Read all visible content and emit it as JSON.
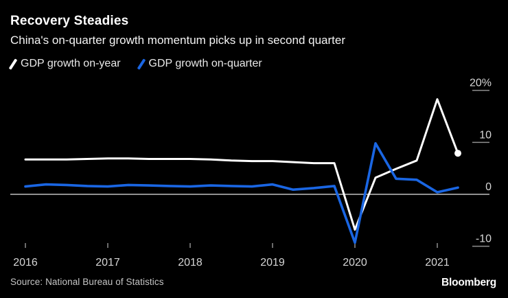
{
  "header": {
    "title": "Recovery Steadies",
    "subtitle": "China's on-quarter growth momentum picks up in second quarter"
  },
  "footer": {
    "source": "Source: National Bureau of Statistics",
    "brand": "Bloomberg"
  },
  "colors": {
    "background": "#000000",
    "on_year_line": "#ffffff",
    "on_quarter_line": "#1a66e3",
    "axis_text": "#d6d6d6",
    "grid": "#8f8f8f",
    "zero_line": "#a6a6a6"
  },
  "chart_data": {
    "type": "line",
    "title": "Recovery Steadies",
    "subtitle": "China's on-quarter growth momentum picks up in second quarter",
    "x_unit": "quarter",
    "x_start": "2016 Q1",
    "x_end": "2021 Q2",
    "x": [
      "2016 Q1",
      "2016 Q2",
      "2016 Q3",
      "2016 Q4",
      "2017 Q1",
      "2017 Q2",
      "2017 Q3",
      "2017 Q4",
      "2018 Q1",
      "2018 Q2",
      "2018 Q3",
      "2018 Q4",
      "2019 Q1",
      "2019 Q2",
      "2019 Q3",
      "2019 Q4",
      "2020 Q1",
      "2020 Q2",
      "2020 Q3",
      "2020 Q4",
      "2021 Q1",
      "2021 Q2"
    ],
    "x_tick_labels": [
      "2016",
      "2017",
      "2018",
      "2019",
      "2020",
      "2021"
    ],
    "y_ticks": [
      20,
      10,
      0,
      -10
    ],
    "y_tick_labels": [
      "20%",
      "10",
      "0",
      "-10"
    ],
    "ylim": [
      -12,
      22
    ],
    "zero_line": true,
    "grid": "right-tick-dashes",
    "legend_position": "top-left",
    "series": [
      {
        "name": "GDP growth on-year",
        "color": "#ffffff",
        "end_marker": true,
        "values": [
          6.7,
          6.7,
          6.7,
          6.8,
          6.9,
          6.9,
          6.8,
          6.8,
          6.8,
          6.7,
          6.5,
          6.4,
          6.4,
          6.2,
          6.0,
          6.0,
          -6.8,
          3.2,
          4.9,
          6.5,
          18.3,
          7.9
        ]
      },
      {
        "name": "GDP growth on-quarter",
        "color": "#1a66e3",
        "end_marker": false,
        "values": [
          1.5,
          1.9,
          1.8,
          1.6,
          1.5,
          1.8,
          1.7,
          1.6,
          1.5,
          1.7,
          1.6,
          1.5,
          1.9,
          0.9,
          1.2,
          1.6,
          -9.3,
          9.8,
          3.0,
          2.8,
          0.4,
          1.3
        ]
      }
    ]
  }
}
